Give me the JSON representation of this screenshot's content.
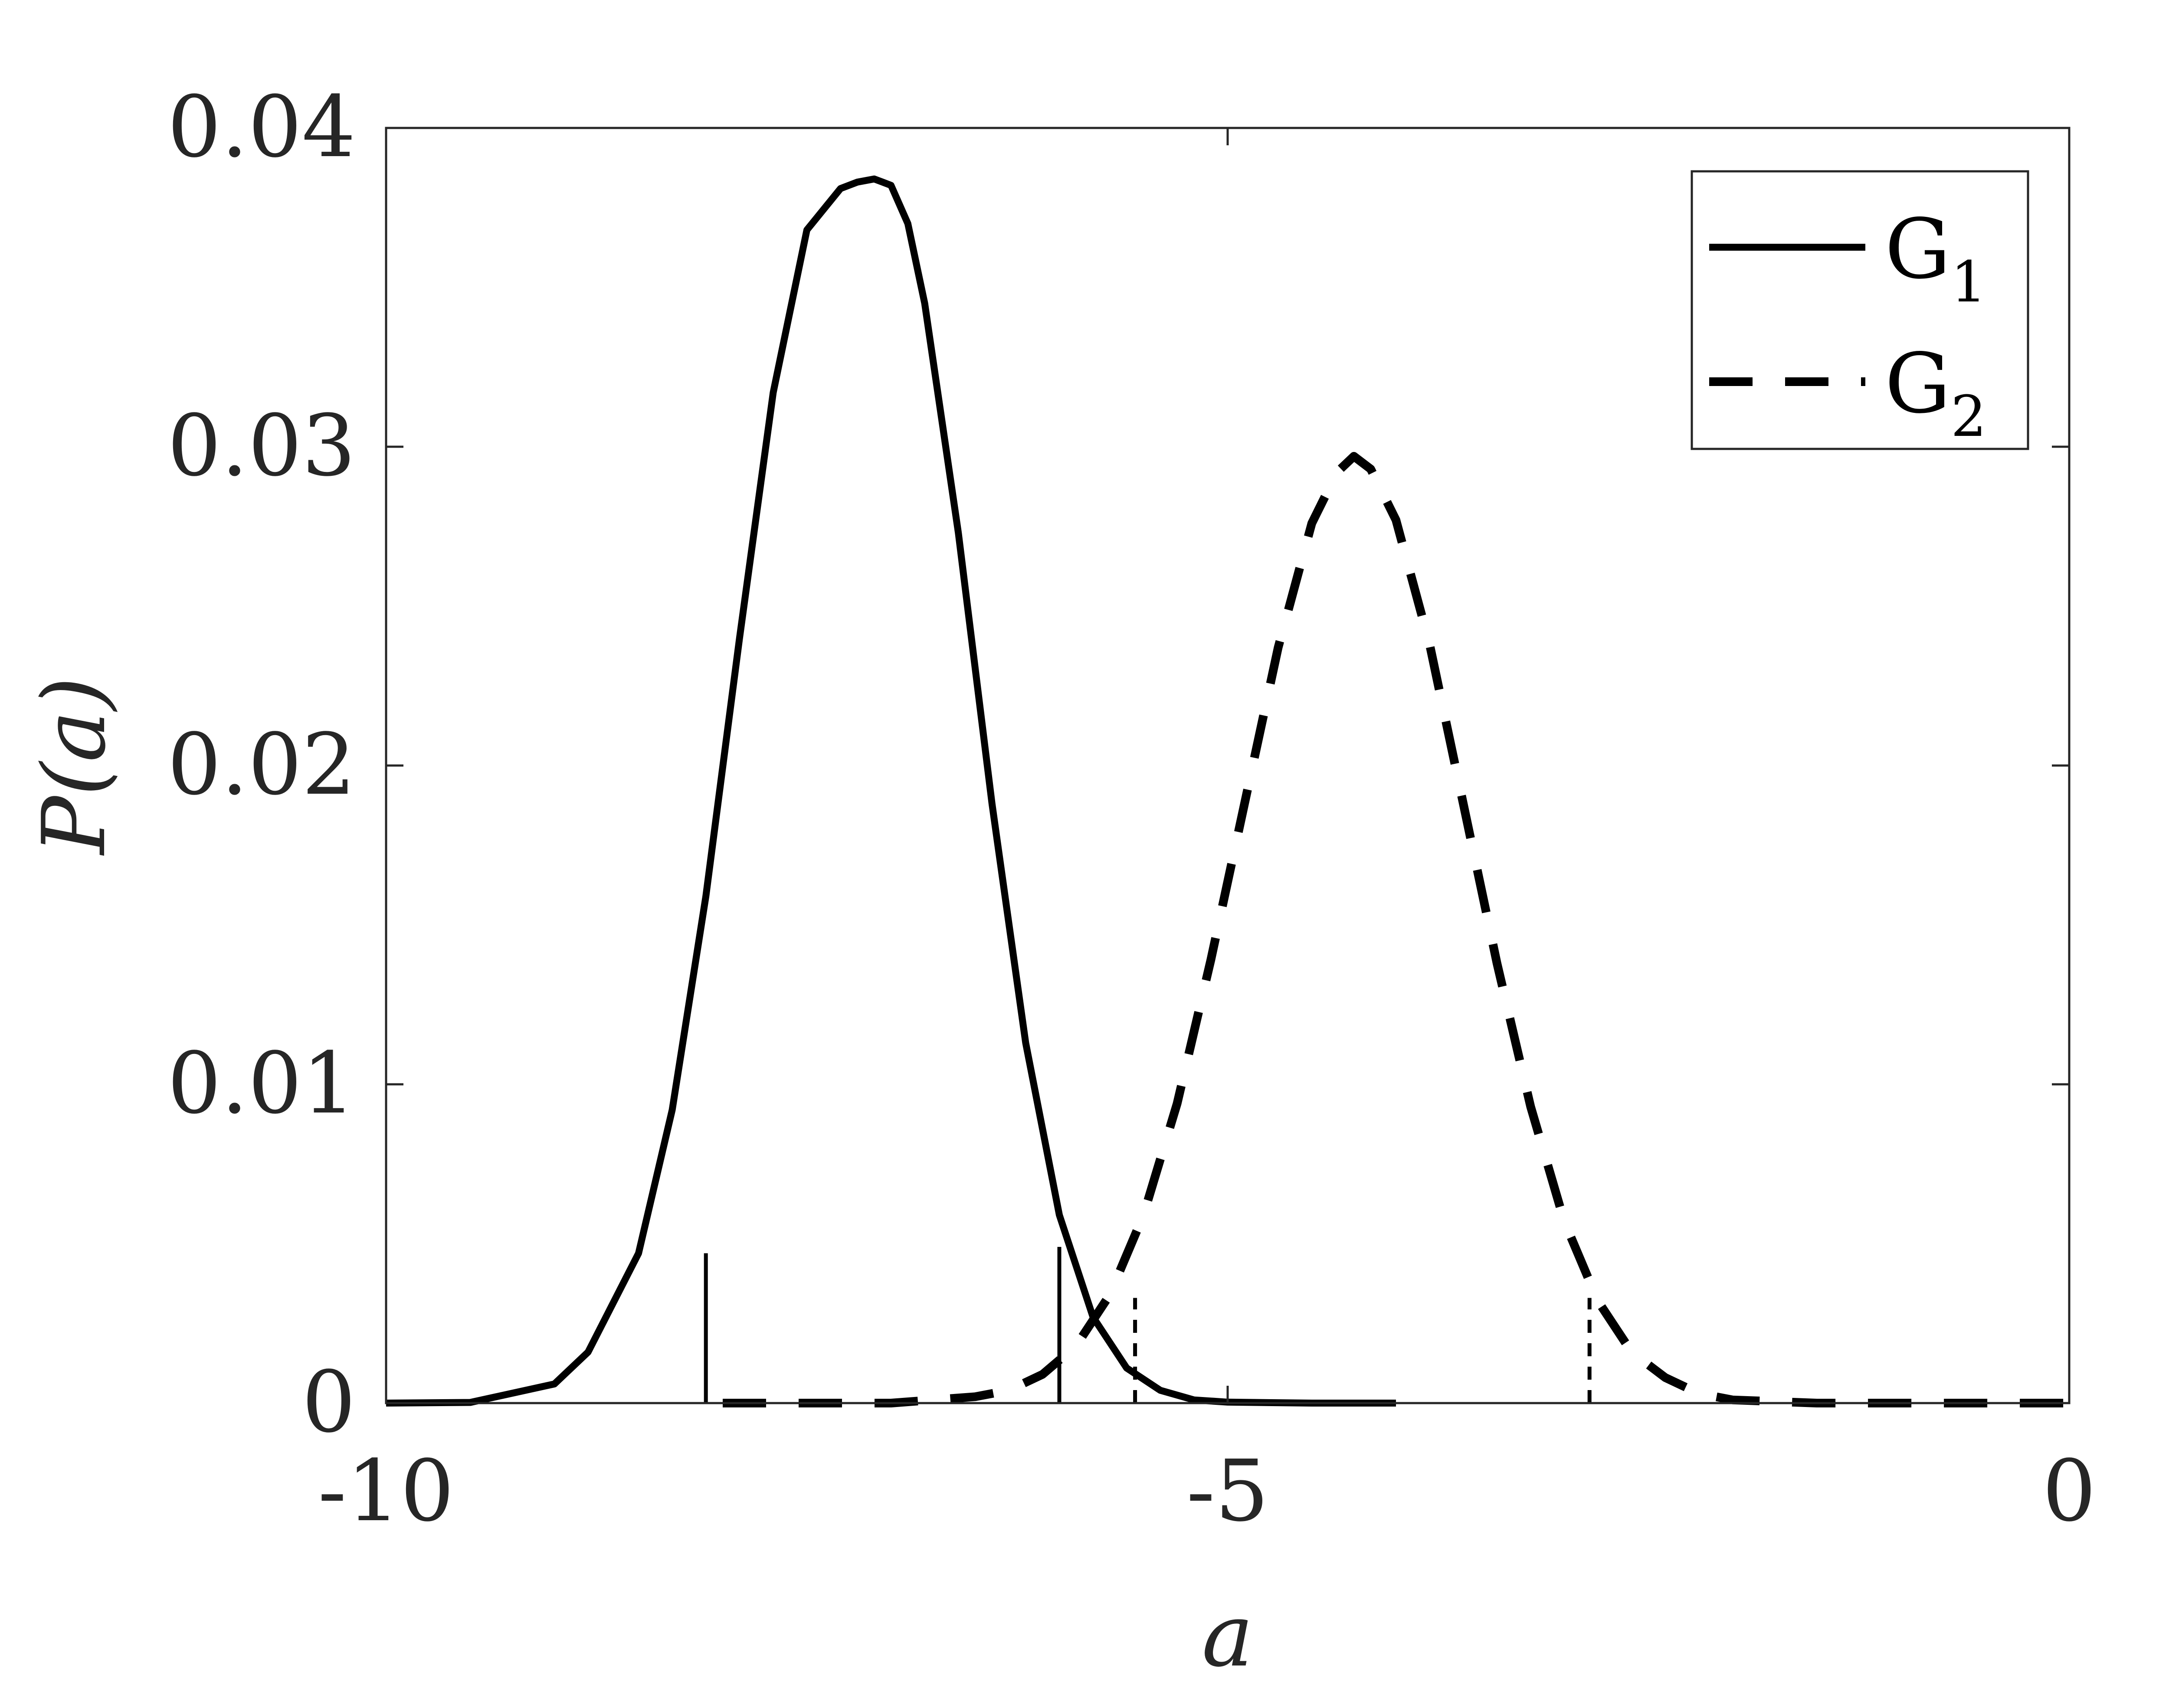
{
  "chart_data": {
    "type": "line",
    "xlabel": "a",
    "ylabel": "P(a)",
    "xlim": [
      -10,
      0
    ],
    "ylim": [
      0,
      0.04
    ],
    "xticks": [
      -10,
      -5,
      0
    ],
    "xtick_labels": [
      "-10",
      "-5",
      "0"
    ],
    "yticks": [
      0,
      0.01,
      0.02,
      0.03,
      0.04
    ],
    "ytick_labels": [
      "0",
      "0.01",
      "0.02",
      "0.03",
      "0.04"
    ],
    "grid": false,
    "legend_position": "top-right",
    "series": [
      {
        "name": "G",
        "name_subscript": "1",
        "style": "solid",
        "color": "#000000",
        "peak_x": -7.05,
        "peak_y": 0.0383,
        "x": [
          -10.0,
          -9.5,
          -9.0,
          -8.8,
          -8.5,
          -8.3,
          -8.1,
          -7.9,
          -7.7,
          -7.5,
          -7.3,
          -7.2,
          -7.1,
          -7.05,
          -7.0,
          -6.9,
          -6.8,
          -6.6,
          -6.4,
          -6.2,
          -6.0,
          -5.8,
          -5.6,
          -5.4,
          -5.2,
          -5.0,
          -4.5,
          -4.0
        ],
        "y": [
          0.0,
          2e-05,
          0.0006,
          0.0016,
          0.0047,
          0.0092,
          0.0159,
          0.024,
          0.0317,
          0.0368,
          0.0381,
          0.0383,
          0.0384,
          0.0383,
          0.0382,
          0.037,
          0.0345,
          0.0273,
          0.0188,
          0.0113,
          0.0059,
          0.0027,
          0.0011,
          0.0004,
          0.0001,
          3e-05,
          0.0,
          0.0
        ],
        "bounds": [
          {
            "x": -8.1,
            "y": 0.0047
          },
          {
            "x": -6.0,
            "y": 0.0049
          }
        ]
      },
      {
        "name": "G",
        "name_subscript": "2",
        "style": "dashed",
        "color": "#000000",
        "peak_x": -4.25,
        "peak_y": 0.0297,
        "x": [
          -8.0,
          -7.0,
          -6.5,
          -6.3,
          -6.1,
          -5.9,
          -5.7,
          -5.5,
          -5.3,
          -5.1,
          -4.9,
          -4.7,
          -4.5,
          -4.35,
          -4.25,
          -4.15,
          -4.0,
          -3.8,
          -3.6,
          -3.4,
          -3.2,
          -3.0,
          -2.8,
          -2.6,
          -2.4,
          -2.2,
          -2.0,
          -1.5,
          -1.0,
          0.0
        ],
        "y": [
          0.0,
          0.0,
          0.0002,
          0.0004,
          0.0009,
          0.0018,
          0.0034,
          0.0059,
          0.0094,
          0.0139,
          0.0188,
          0.0237,
          0.0276,
          0.0292,
          0.0297,
          0.0293,
          0.0277,
          0.0238,
          0.0188,
          0.0138,
          0.0093,
          0.0057,
          0.0032,
          0.0016,
          0.0008,
          0.0003,
          0.0001,
          0.0,
          0.0,
          0.0
        ],
        "bounds": [
          {
            "x": -5.55,
            "y": 0.0033
          },
          {
            "x": -2.85,
            "y": 0.0033
          }
        ]
      }
    ]
  }
}
